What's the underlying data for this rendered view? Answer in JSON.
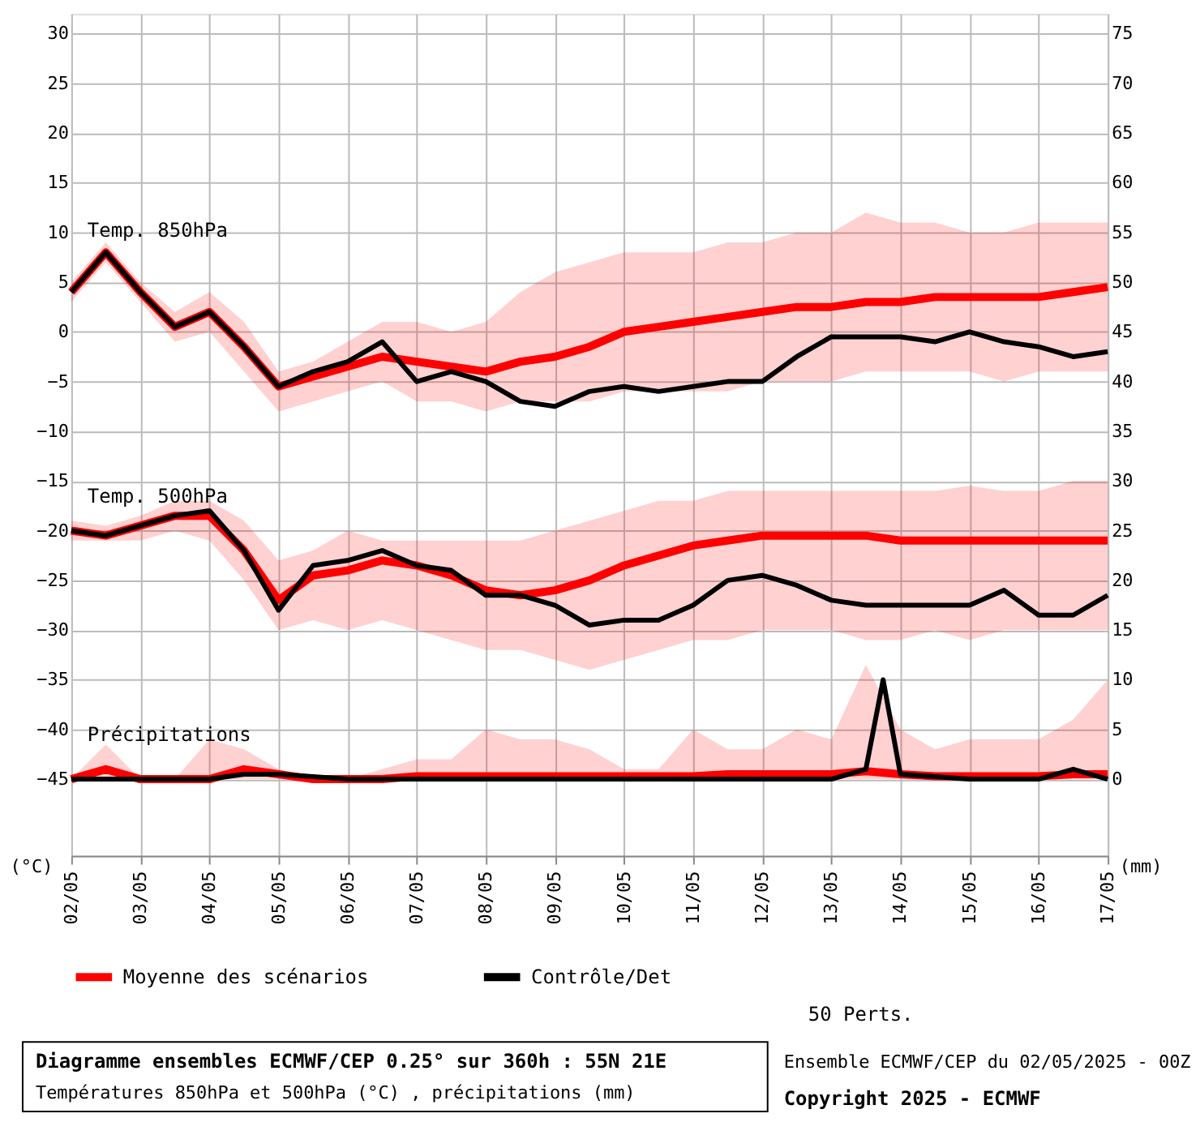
{
  "chart_data": {
    "type": "line",
    "title": "Diagramme ensembles ECMWF/CEP 0.25° sur 360h : 55N 21E",
    "subtitle": "Températures 850hPa et 500hPa (°C) , précipitations (mm)",
    "ylabel": "(°C)",
    "y2label": "(mm)",
    "annotations": [
      "Temp. 850hPa",
      "Temp. 500hPa",
      "Précipitations",
      "50 Perts.",
      "Ensemble ECMWF/CEP du 02/05/2025 - 00Z",
      "Copyright 2025 - ECMWF"
    ],
    "x": [
      "2025-05-02T00:00",
      "2025-05-02T12:00",
      "2025-05-03T00:00",
      "2025-05-03T12:00",
      "2025-05-04T00:00",
      "2025-05-04T12:00",
      "2025-05-05T00:00",
      "2025-05-05T12:00",
      "2025-05-06T00:00",
      "2025-05-06T12:00",
      "2025-05-07T00:00",
      "2025-05-07T12:00",
      "2025-05-08T00:00",
      "2025-05-08T12:00",
      "2025-05-09T00:00",
      "2025-05-09T12:00",
      "2025-05-10T00:00",
      "2025-05-10T12:00",
      "2025-05-11T00:00",
      "2025-05-11T12:00",
      "2025-05-12T00:00",
      "2025-05-12T12:00",
      "2025-05-13T00:00",
      "2025-05-13T12:00",
      "2025-05-14T00:00",
      "2025-05-14T12:00",
      "2025-05-15T00:00",
      "2025-05-15T12:00",
      "2025-05-16T00:00",
      "2025-05-16T12:00",
      "2025-05-17T00:00"
    ],
    "xlim": [
      "2025-05-02T00:00",
      "2025-05-17T00:00"
    ],
    "xticks": [
      {
        "value": "2025-05-02T00:00",
        "label": "02/05"
      },
      {
        "value": "2025-05-03T00:00",
        "label": "03/05"
      },
      {
        "value": "2025-05-04T00:00",
        "label": "04/05"
      },
      {
        "value": "2025-05-05T00:00",
        "label": "05/05"
      },
      {
        "value": "2025-05-06T00:00",
        "label": "06/05"
      },
      {
        "value": "2025-05-07T00:00",
        "label": "07/05"
      },
      {
        "value": "2025-05-08T00:00",
        "label": "08/05"
      },
      {
        "value": "2025-05-09T00:00",
        "label": "09/05"
      },
      {
        "value": "2025-05-10T00:00",
        "label": "10/05"
      },
      {
        "value": "2025-05-11T00:00",
        "label": "11/05"
      },
      {
        "value": "2025-05-12T00:00",
        "label": "12/05"
      },
      {
        "value": "2025-05-13T00:00",
        "label": "13/05"
      },
      {
        "value": "2025-05-14T00:00",
        "label": "14/05"
      },
      {
        "value": "2025-05-15T00:00",
        "label": "15/05"
      },
      {
        "value": "2025-05-16T00:00",
        "label": "16/05"
      },
      {
        "value": "2025-05-17T00:00",
        "label": "17/05"
      }
    ],
    "ylim": [
      -52.7,
      32
    ],
    "yticks": [
      -45,
      -40,
      -35,
      -30,
      -25,
      -20,
      -15,
      -10,
      -5,
      0,
      5,
      10,
      15,
      20,
      25,
      30
    ],
    "y2lim": [
      -7.7,
      77
    ],
    "y2ticks": [
      0,
      5,
      10,
      15,
      20,
      25,
      30,
      35,
      40,
      45,
      50,
      55,
      60,
      65,
      70,
      75
    ],
    "grid": true,
    "legend": "bottom left",
    "series": [
      {
        "name": "Moyenne des scénarios",
        "color": "#ff0000",
        "values": [
          4,
          8,
          4,
          0.5,
          2,
          -1.5,
          -5.5,
          -4.5,
          -3.5,
          -2.5,
          -3,
          -3.5,
          -4,
          -3,
          -2.5,
          -1.5,
          0,
          0.5,
          1,
          1.5,
          2,
          2.5,
          2.5,
          3,
          3,
          3.5,
          3.5,
          3.5,
          3.5,
          4,
          4.5
        ],
        "lower": [
          3,
          7,
          3,
          -1,
          0,
          -4,
          -8,
          -7,
          -6,
          -5,
          -7,
          -7,
          -8,
          -7,
          -7,
          -7,
          -6,
          -6,
          -6,
          -6,
          -5,
          -5,
          -5,
          -4,
          -4,
          -4,
          -4,
          -5,
          -4,
          -4,
          -4
        ],
        "upper": [
          5,
          9,
          5,
          2,
          4,
          1,
          -4,
          -3,
          -1,
          1,
          1,
          0,
          1,
          4,
          6,
          7,
          8,
          8,
          8,
          9,
          9,
          10,
          10,
          12,
          11,
          11,
          10,
          10,
          11,
          11,
          11
        ]
      },
      {
        "name": "Contrôle/Det",
        "color": "#000000",
        "values": [
          4,
          8,
          4,
          0.5,
          2,
          -1.5,
          -5.5,
          -4,
          -3,
          -1,
          -5,
          -4,
          -5,
          -7,
          -7.5,
          -6,
          -5.5,
          -6,
          -5.5,
          -5,
          -5,
          -2.5,
          -0.5,
          -0.5,
          -0.5,
          -1,
          0,
          -1,
          -1.5,
          -2.5,
          -2
        ]
      },
      {
        "color": "#ff0000",
        "values": [
          -20,
          -20.5,
          -19.5,
          -18.5,
          -18.5,
          -22,
          -27,
          -24.5,
          -24,
          -23,
          -23.5,
          -24.5,
          -26,
          -26.5,
          -26,
          -25,
          -23.5,
          -22.5,
          -21.5,
          -21,
          -20.5,
          -20.5,
          -20.5,
          -20.5,
          -21,
          -21,
          -21,
          -21,
          -21,
          -21,
          -21
        ],
        "lower": [
          -21,
          -21,
          -21,
          -20,
          -21,
          -25,
          -30,
          -29,
          -30,
          -29,
          -30,
          -31,
          -32,
          -32,
          -33,
          -34,
          -33,
          -32,
          -31,
          -31,
          -30,
          -30,
          -30,
          -31,
          -31,
          -30,
          -31,
          -30,
          -30,
          -30,
          -30
        ],
        "upper": [
          -19,
          -19.5,
          -18.5,
          -17,
          -17,
          -19,
          -23,
          -22,
          -20,
          -21,
          -21,
          -21,
          -21,
          -21,
          -20,
          -19,
          -18,
          -17,
          -17,
          -16,
          -16,
          -16,
          -16,
          -16,
          -16,
          -16,
          -15.5,
          -16,
          -16,
          -15,
          -15
        ]
      },
      {
        "color": "#000000",
        "values": [
          -20,
          -20.5,
          -19.5,
          -18.5,
          -18,
          -22,
          -28,
          -23.5,
          -23,
          -22,
          -23.5,
          -24,
          -26.5,
          -26.5,
          -27.5,
          -29.5,
          -29,
          -29,
          -27.5,
          -25,
          -24.5,
          -25.5,
          -27,
          -27.5,
          -27.5,
          -27.5,
          -27.5,
          -26,
          -28.5,
          -28.5,
          -26.5
        ]
      },
      {
        "color": "#ff0000",
        "axis": "y2",
        "values": [
          0,
          1,
          0,
          0,
          0,
          1,
          0.5,
          0,
          0,
          0,
          0.3,
          0.3,
          0.3,
          0.3,
          0.3,
          0.3,
          0.3,
          0.3,
          0.3,
          0.5,
          0.5,
          0.5,
          0.5,
          0.8,
          0.5,
          0.3,
          0.3,
          0.3,
          0.3,
          0.5,
          0.5
        ],
        "lower": [
          0,
          0,
          0,
          0,
          0,
          0,
          0,
          0,
          0,
          0,
          0,
          0,
          0,
          0,
          0,
          0,
          0,
          0,
          0,
          0,
          0,
          0,
          0,
          0,
          0,
          0,
          0,
          0,
          0,
          0,
          0
        ],
        "upper": [
          0,
          3.5,
          0,
          0,
          4,
          3,
          1,
          0,
          0,
          1,
          2,
          2,
          5,
          4,
          4,
          3,
          1,
          1,
          5,
          3,
          3,
          5,
          4,
          11.5,
          5,
          3,
          4,
          4,
          4,
          6,
          10
        ]
      },
      {
        "color": "#000000",
        "axis": "y2",
        "x": [
          "2025-05-02T00:00",
          "2025-05-03T00:00",
          "2025-05-04T00:00",
          "2025-05-04T12:00",
          "2025-05-05T00:00",
          "2025-05-06T00:00",
          "2025-05-10T00:00",
          "2025-05-13T00:00",
          "2025-05-13T12:00",
          "2025-05-13T18:00",
          "2025-05-14T00:00",
          "2025-05-15T00:00",
          "2025-05-16T00:00",
          "2025-05-16T12:00",
          "2025-05-17T00:00"
        ],
        "values": [
          0,
          0,
          0,
          0.5,
          0.5,
          0,
          0,
          0,
          1,
          10,
          0.5,
          0,
          0,
          1,
          0
        ]
      }
    ]
  }
}
